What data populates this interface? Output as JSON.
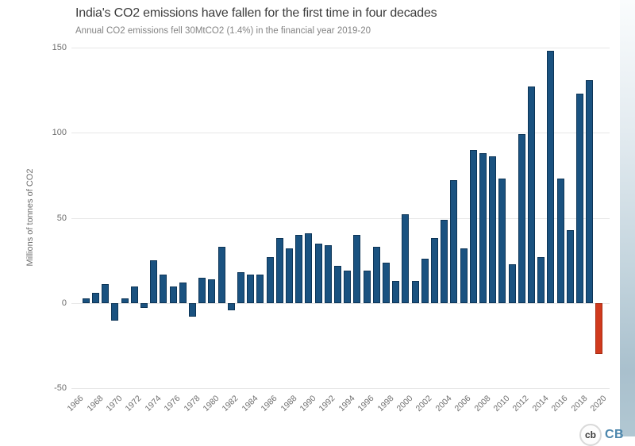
{
  "logo": {
    "circle_text": "cb",
    "brand_text": "CB"
  },
  "chart_data": {
    "type": "bar",
    "title": "India's CO2 emissions have fallen for the first time in four decades",
    "subtitle": "Annual CO2 emissions fell 30MtCO2 (1.4%) in the financial year 2019-20",
    "ylabel": "Millions of tonnes of CO2",
    "xlabel": "",
    "ylim": [
      -50,
      150
    ],
    "yticks": [
      150,
      100,
      50,
      0,
      -50
    ],
    "grid": true,
    "legend": false,
    "axis_start_year": 1966,
    "xtick_labels": [
      "1966",
      "1968",
      "1970",
      "1972",
      "1974",
      "1976",
      "1978",
      "1980",
      "1982",
      "1984",
      "1986",
      "1988",
      "1990",
      "1992",
      "1994",
      "1996",
      "1998",
      "2000",
      "2002",
      "2004",
      "2006",
      "2008",
      "2010",
      "2012",
      "2014",
      "2016",
      "2018",
      "2020"
    ],
    "x": [
      1967,
      1968,
      1969,
      1970,
      1971,
      1972,
      1973,
      1974,
      1975,
      1976,
      1977,
      1978,
      1979,
      1980,
      1981,
      1982,
      1983,
      1984,
      1985,
      1986,
      1987,
      1988,
      1989,
      1990,
      1991,
      1992,
      1993,
      1994,
      1995,
      1996,
      1997,
      1998,
      1999,
      2000,
      2001,
      2002,
      2003,
      2004,
      2005,
      2006,
      2007,
      2008,
      2009,
      2010,
      2011,
      2012,
      2013,
      2014,
      2015,
      2016,
      2017,
      2018,
      2019,
      2020
    ],
    "values": [
      3,
      6,
      11,
      -10,
      3,
      10,
      -3,
      25,
      17,
      10,
      12,
      -8,
      15,
      14,
      33,
      -4,
      18,
      17,
      17,
      27,
      38,
      32,
      40,
      41,
      35,
      34,
      22,
      19,
      40,
      19,
      33,
      24,
      13,
      52,
      13,
      26,
      38,
      49,
      72,
      32,
      90,
      88,
      86,
      73,
      23,
      99,
      127,
      27,
      148,
      73,
      43,
      123,
      131,
      -30
    ],
    "highlight_year": 2020,
    "bar_color": "#1a5280",
    "bar_border_color": "#0d3557",
    "highlight_color": "#d03a1e",
    "highlight_border_color": "#a82c12"
  }
}
